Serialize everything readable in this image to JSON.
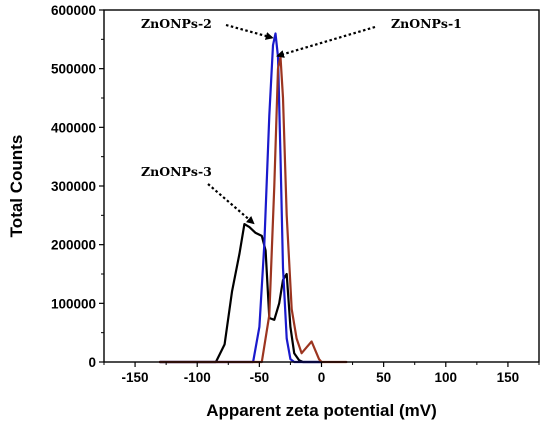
{
  "chart_data": {
    "type": "line",
    "xlabel": "Apparent zeta potential (mV)",
    "ylabel": "Total Counts",
    "xlim": [
      -175,
      175
    ],
    "ylim": [
      0,
      600000
    ],
    "x_ticks": [
      -150,
      -100,
      -50,
      0,
      50,
      100,
      150
    ],
    "y_ticks": [
      0,
      100000,
      200000,
      300000,
      400000,
      500000,
      600000
    ],
    "x_tick_labels": [
      "-150",
      "-100",
      "-50",
      "0",
      "50",
      "100",
      "150"
    ],
    "y_tick_labels": [
      "0",
      "100000",
      "200000",
      "300000",
      "400000",
      "500000",
      "600000"
    ],
    "grid": false,
    "series": [
      {
        "name": "ZnONPs-3",
        "color": "#000000",
        "x": [
          -130,
          -85,
          -78,
          -72,
          -66,
          -62,
          -58,
          -53,
          -48,
          -45,
          -42,
          -38,
          -34,
          -31,
          -28,
          -25,
          -22,
          -18,
          -15,
          -10,
          0
        ],
        "y": [
          0,
          0,
          30000,
          120000,
          185000,
          235000,
          230000,
          220000,
          215000,
          190000,
          75000,
          72000,
          100000,
          140000,
          150000,
          60000,
          15000,
          3000,
          0,
          0,
          0
        ]
      },
      {
        "name": "ZnONPs-2",
        "color": "#1a1acc",
        "x": [
          -130,
          -55,
          -50,
          -46,
          -42,
          -39,
          -37,
          -35,
          -33,
          -31,
          -28,
          -25,
          -22,
          0
        ],
        "y": [
          0,
          0,
          60000,
          200000,
          420000,
          540000,
          560000,
          520000,
          350000,
          160000,
          40000,
          5000,
          0,
          0
        ]
      },
      {
        "name": "ZnONPs-1",
        "color": "#9c3520",
        "x": [
          -130,
          -48,
          -42,
          -38,
          -35,
          -33,
          -31,
          -28,
          -24,
          -20,
          -16,
          -12,
          -8,
          -5,
          -2,
          0,
          20
        ],
        "y": [
          0,
          0,
          80000,
          300000,
          500000,
          520000,
          450000,
          250000,
          90000,
          40000,
          15000,
          25000,
          35000,
          20000,
          5000,
          0,
          0
        ]
      }
    ],
    "annotations": [
      {
        "text": "ZnONPs-2",
        "target_x": -40,
        "target_y": 553000
      },
      {
        "text": "ZnONPs-1",
        "target_x": -35,
        "target_y": 522000
      },
      {
        "text": "ZnONPs-3",
        "target_x": -55,
        "target_y": 237000
      }
    ]
  }
}
